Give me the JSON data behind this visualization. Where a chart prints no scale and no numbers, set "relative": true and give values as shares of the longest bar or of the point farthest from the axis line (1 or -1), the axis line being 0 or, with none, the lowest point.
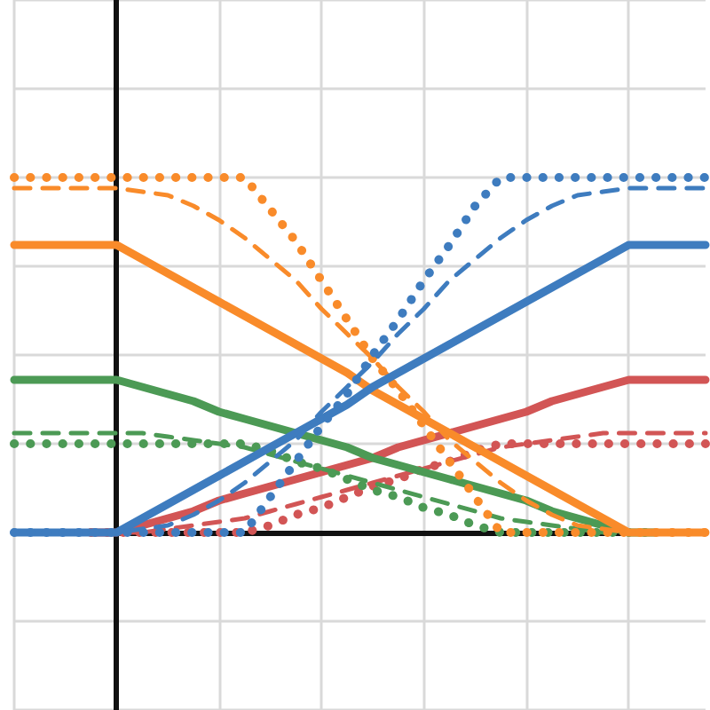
{
  "chart_data": {
    "type": "line",
    "relative": true,
    "grid": true,
    "marker": "none",
    "tick_labels": false,
    "categories": [
      null,
      null,
      null,
      null,
      null,
      null,
      null,
      null,
      null,
      null,
      null,
      null,
      null,
      null,
      null,
      null,
      null,
      null,
      null,
      null,
      null,
      null,
      null,
      null,
      null,
      null,
      null,
      null
    ],
    "series": [
      {
        "color": "#d25555",
        "line_style": "solid",
        "values": [
          null,
          null,
          null,
          0,
          0,
          0.02,
          0.04,
          0.06,
          0.09,
          0.11,
          0.13,
          0.15,
          0.17,
          0.19,
          0.21,
          0.24,
          0.26,
          0.28,
          0.3,
          0.32,
          0.34,
          0.37,
          0.39,
          0.41,
          0.43,
          0.43,
          0.43,
          0.43
        ]
      },
      {
        "color": "#d25555",
        "line_style": "dashed",
        "values": [
          null,
          null,
          null,
          0,
          0,
          0,
          0.01,
          0.02,
          0.03,
          0.04,
          0.06,
          0.08,
          0.1,
          0.12,
          0.14,
          0.16,
          0.18,
          0.2,
          0.22,
          0.24,
          0.25,
          0.26,
          0.27,
          0.28,
          0.28,
          0.28,
          0.28,
          0.28
        ]
      },
      {
        "color": "#d25555",
        "line_style": "dotted",
        "values": [
          null,
          null,
          null,
          0,
          0,
          0,
          0,
          0,
          0,
          0,
          0.02,
          0.05,
          0.07,
          0.1,
          0.13,
          0.15,
          0.18,
          0.2,
          0.23,
          0.25,
          0.25,
          0.25,
          0.25,
          0.25,
          0.25,
          0.25,
          0.25,
          0.25
        ]
      },
      {
        "color": "#4c9a55",
        "line_style": "solid",
        "values": [
          0.43,
          0.43,
          0.43,
          0.43,
          0.43,
          0.41,
          0.39,
          0.37,
          0.34,
          0.32,
          0.3,
          0.28,
          0.26,
          0.24,
          0.21,
          0.19,
          0.17,
          0.15,
          0.13,
          0.11,
          0.09,
          0.06,
          0.04,
          0.02,
          0,
          0,
          null,
          null
        ]
      },
      {
        "color": "#4c9a55",
        "line_style": "dashed",
        "values": [
          0.28,
          0.28,
          0.28,
          0.28,
          0.28,
          0.28,
          0.27,
          0.26,
          0.25,
          0.24,
          0.22,
          0.2,
          0.18,
          0.16,
          0.14,
          0.12,
          0.1,
          0.08,
          0.06,
          0.04,
          0.03,
          0.02,
          0.01,
          0,
          0,
          0,
          null,
          null
        ]
      },
      {
        "color": "#4c9a55",
        "line_style": "dotted",
        "values": [
          0.25,
          0.25,
          0.25,
          0.25,
          0.25,
          0.25,
          0.25,
          0.25,
          0.25,
          0.25,
          0.23,
          0.2,
          0.18,
          0.15,
          0.12,
          0.1,
          0.07,
          0.05,
          0.02,
          0,
          0,
          0,
          0,
          0,
          0,
          0,
          null,
          null
        ]
      },
      {
        "color": "#f98b2a",
        "line_style": "solid",
        "values": [
          0.81,
          0.81,
          0.81,
          0.81,
          0.81,
          0.77,
          0.73,
          0.69,
          0.65,
          0.61,
          0.57,
          0.53,
          0.49,
          0.45,
          0.4,
          0.36,
          0.32,
          0.28,
          0.24,
          0.2,
          0.16,
          0.12,
          0.08,
          0.04,
          0,
          0,
          0,
          0
        ]
      },
      {
        "color": "#f98b2a",
        "line_style": "dashed",
        "values": [
          0.97,
          0.97,
          0.97,
          0.97,
          0.97,
          0.96,
          0.95,
          0.92,
          0.88,
          0.83,
          0.77,
          0.71,
          0.63,
          0.56,
          0.49,
          0.41,
          0.34,
          0.26,
          0.2,
          0.14,
          0.09,
          0.05,
          0.02,
          0.01,
          0,
          0,
          0,
          0
        ]
      },
      {
        "color": "#f98b2a",
        "line_style": "dotted",
        "values": [
          1,
          1,
          1,
          1,
          1,
          1,
          1,
          1,
          1,
          1,
          0.91,
          0.82,
          0.71,
          0.6,
          0.49,
          0.4,
          0.3,
          0.2,
          0.1,
          0,
          0,
          0,
          0,
          0,
          0,
          0,
          0,
          0
        ]
      },
      {
        "color": "#3e7cbf",
        "line_style": "solid",
        "values": [
          0,
          0,
          0,
          0,
          0,
          0.04,
          0.08,
          0.12,
          0.16,
          0.2,
          0.24,
          0.28,
          0.32,
          0.36,
          0.41,
          0.45,
          0.49,
          0.53,
          0.57,
          0.61,
          0.65,
          0.69,
          0.73,
          0.77,
          0.81,
          0.81,
          0.81,
          0.81
        ]
      },
      {
        "color": "#3e7cbf",
        "line_style": "dashed",
        "values": [
          0,
          0,
          0,
          0,
          0,
          0.01,
          0.02,
          0.05,
          0.09,
          0.14,
          0.2,
          0.26,
          0.34,
          0.41,
          0.48,
          0.56,
          0.63,
          0.71,
          0.77,
          0.83,
          0.88,
          0.92,
          0.95,
          0.96,
          0.97,
          0.97,
          0.97,
          0.97
        ]
      },
      {
        "color": "#3e7cbf",
        "line_style": "dotted",
        "values": [
          0,
          0,
          0,
          0,
          0,
          0,
          0,
          0,
          0,
          0,
          0.1,
          0.2,
          0.3,
          0.39,
          0.5,
          0.6,
          0.71,
          0.81,
          0.92,
          1,
          1,
          1,
          1,
          1,
          1,
          1,
          1,
          1
        ]
      }
    ]
  }
}
